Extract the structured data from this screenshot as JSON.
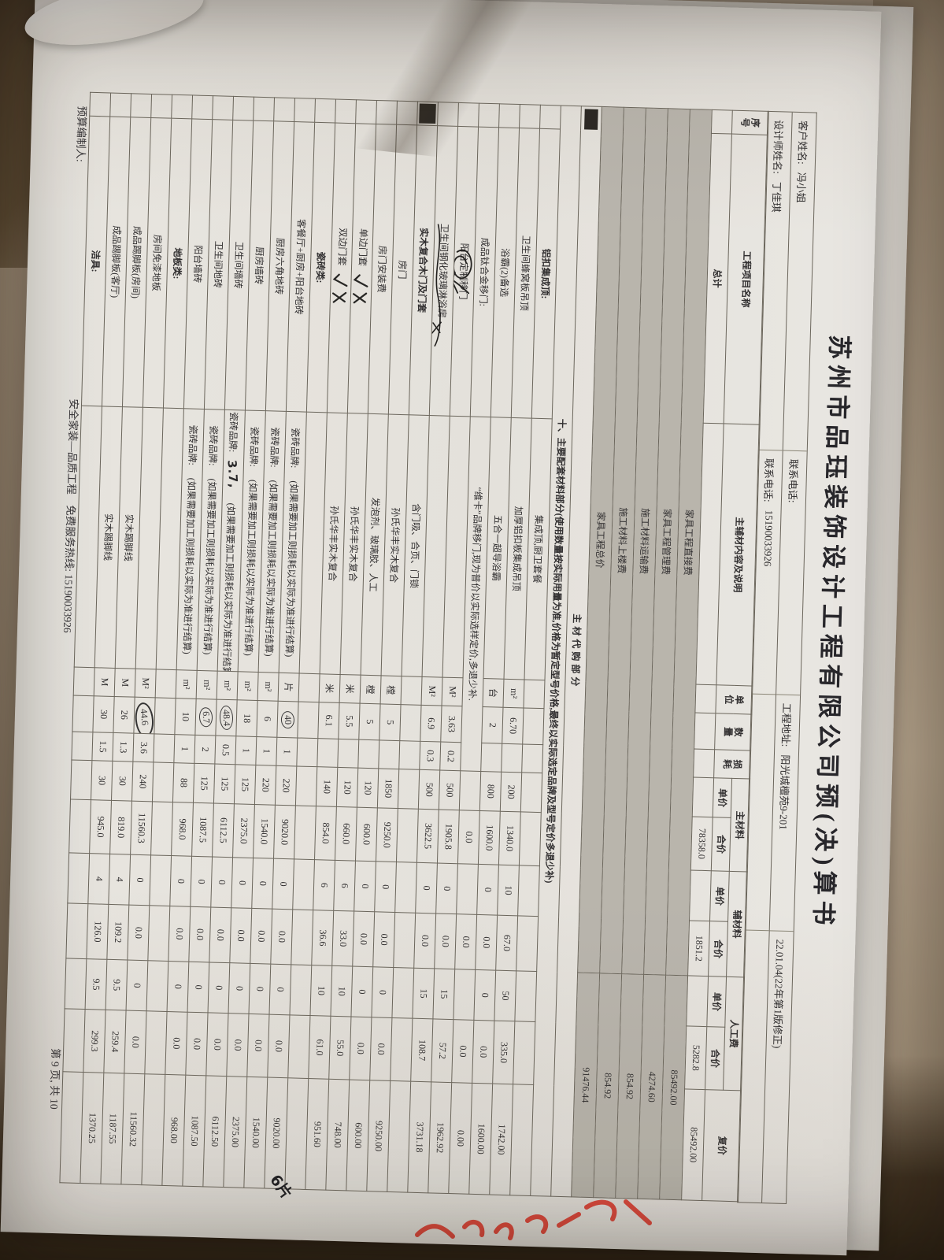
{
  "document": {
    "title": "苏州市品珏装饰设计工程有限公司预(决)算书",
    "info": {
      "customer_label": "客户姓名:",
      "customer": "冯小姐",
      "phone1_label": "联系电话:",
      "phone1": "",
      "address_label": "工程地址:",
      "address": "阳光城檀苑9-201",
      "version": "22.01.04(22年第1版修正)",
      "designer_label": "设计师姓名:",
      "designer": "丁佳琪",
      "phone2_label": "联系电话:",
      "phone2": "15190033926"
    },
    "table": {
      "header": {
        "seq": "序\n号",
        "name": "工程项目名称",
        "desc": "主辅材内容及说明",
        "unit": "单\n位",
        "qty": "数\n量",
        "loss": "损\n耗",
        "groups": [
          {
            "label": "主材料",
            "children": [
              "单价",
              "合价"
            ]
          },
          {
            "label": "辅材料",
            "children": [
              "单价",
              "合价"
            ]
          },
          {
            "label": "人工费",
            "children": [
              "单价",
              "合价"
            ]
          }
        ],
        "total": "复价"
      },
      "rows": [
        {
          "type": "item",
          "name": "总计",
          "name_center": true,
          "bold": true,
          "main_total": "78358.0",
          "aux_total": "1851.2",
          "labor_total": "5282.8",
          "total": "85492.00"
        },
        {
          "type": "summary",
          "shaded": true,
          "label": "家具工程直接费",
          "value": "85492.00"
        },
        {
          "type": "summary",
          "shaded": true,
          "label": "家具工程管理费",
          "value": "4274.60"
        },
        {
          "type": "summary",
          "shaded": true,
          "label": "施工材料运输费",
          "value": "854.92"
        },
        {
          "type": "summary",
          "shaded": true,
          "label": "施工材料上楼费",
          "value": "854.92"
        },
        {
          "type": "summary",
          "shaded": true,
          "label": "家具工程总价",
          "value": "91476.44"
        },
        {
          "type": "sec",
          "align": "center",
          "seq_mark": true,
          "text": "主材代购部分"
        },
        {
          "type": "note",
          "text": "十、主要配套材料部分(使用数量按实际用量为准,价格为暂定型号价格,最终以实际选定品牌及型号定价多退少补)"
        },
        {
          "type": "item",
          "bold": true,
          "name": "铝扣集成顶:",
          "desc": "集成顶,厨卫套餐"
        },
        {
          "type": "item",
          "name": "卫生间蜂窝板吊顶",
          "desc": "加厚铝扣板集成吊顶",
          "unit": "m²",
          "qty": "6.70",
          "price": "200",
          "main_total": "1340.0",
          "aux_price": "10",
          "aux_total": "67.0",
          "labor_price": "50",
          "labor_total": "335.0",
          "total": "1742.00"
        },
        {
          "type": "item",
          "name": "浴霸(2)备选",
          "desc": "五合一超导浴霸",
          "unit": "台",
          "qty": "2",
          "price": "800",
          "main_total": "1600.0",
          "aux_price": "0",
          "aux_total": "0.0",
          "labor_price": "0",
          "labor_total": "0.0",
          "total": "1600.00"
        },
        {
          "type": "item",
          "name": "成品钛合金移门:",
          "desc": "“维卡”品牌移门,现为普价以实际选样定价,多退少补.",
          "desc_span": 4,
          "main_total": "0.0",
          "aux_total": "0.0",
          "labor_total": "0.0",
          "total": "0.00"
        },
        {
          "type": "item",
          "name": "阳台定制移门",
          "mark": "scribble",
          "unit": "M²",
          "qty": "3.63",
          "loss": "0.2",
          "price": "500",
          "main_total": "1905.8",
          "aux_price": "0",
          "aux_total": "0.0",
          "labor_price": "15",
          "labor_total": "57.2",
          "total": "1962.92"
        },
        {
          "type": "item",
          "name": "卫生间钢化玻璃淋浴房",
          "mark": "underline",
          "unit": "M²",
          "qty": "6.9",
          "loss": "0.3",
          "price": "500",
          "main_total": "3622.5",
          "aux_price": "0",
          "aux_total": "0.0",
          "labor_price": "15",
          "labor_total": "108.7",
          "total": "3731.18"
        },
        {
          "type": "item",
          "bold": true,
          "seq_mark": true,
          "name": "实木复合木门及门套",
          "desc": "含门吸、合页、门锁"
        },
        {
          "type": "item",
          "name": "房门",
          "desc": "孙氏华丰实木复合",
          "unit": "樘",
          "qty": "5",
          "price": "1850",
          "main_total": "9250.0",
          "aux_price": "0",
          "aux_total": "0.0",
          "labor_price": "0",
          "labor_total": "0.0",
          "total": "9250.00"
        },
        {
          "type": "item",
          "name": "房门安装费",
          "desc": "发泡剂、玻璃胶、人工",
          "unit": "樘",
          "qty": "5",
          "price": "120",
          "main_total": "600.0",
          "aux_price": "0",
          "aux_total": "0.0",
          "labor_price": "0",
          "labor_total": "0.0",
          "total": "600.00"
        },
        {
          "type": "item",
          "name": "单边门套",
          "mark": "checks",
          "desc": "孙氏华丰实木复合",
          "unit": "米",
          "qty": "5.5",
          "price": "120",
          "main_total": "660.0",
          "aux_price": "6",
          "aux_total": "33.0",
          "labor_price": "10",
          "labor_total": "55.0",
          "total": "748.00"
        },
        {
          "type": "item",
          "name": "双边门套",
          "mark": "checks",
          "desc": "孙氏华丰实木复合",
          "unit": "米",
          "qty": "6.1",
          "price": "140",
          "main_total": "854.0",
          "aux_price": "6",
          "aux_total": "36.6",
          "labor_price": "10",
          "labor_total": "61.0",
          "total": "951.60"
        },
        {
          "type": "item",
          "bold": true,
          "name": "瓷砖类:"
        },
        {
          "type": "item",
          "name": "客餐厅+厨房+阳台地砖",
          "desc": "瓷砖品牌:",
          "desc_note": "(如果需要加工则损耗以实际为准进行结算)",
          "unit": "片",
          "qty": "40",
          "qty_circled": true,
          "loss": "1",
          "price": "220",
          "main_total": "9020.0",
          "aux_price": "0",
          "aux_total": "0.0",
          "labor_price": "0",
          "labor_total": "0.0",
          "total": "9020.00"
        },
        {
          "type": "item",
          "name": "厨房六角地砖",
          "desc": "瓷砖品牌:",
          "desc_note": "(如果需要加工则损耗以实际为准进行结算)",
          "unit": "m²",
          "qty": "6",
          "loss": "1",
          "price": "220",
          "main_total": "1540.0",
          "aux_price": "0",
          "aux_total": "0.0",
          "labor_price": "0",
          "labor_total": "0.0",
          "total": "1540.00"
        },
        {
          "type": "item",
          "name": "厨房墙砖",
          "desc": "瓷砖品牌:",
          "desc_note": "(如果需要加工则损耗以实际为准进行结算)",
          "unit": "m²",
          "qty": "18",
          "loss": "1",
          "price": "125",
          "main_total": "2375.0",
          "aux_price": "0",
          "aux_total": "0.0",
          "labor_price": "0",
          "labor_total": "0.0",
          "total": "2375.00"
        },
        {
          "type": "item",
          "name": "卫生间墙砖",
          "desc": "瓷砖品牌:",
          "desc_hw": "3.7,",
          "desc_note": "(如果需要加工则损耗以实际为准进行结算)",
          "unit": "m²",
          "qty": "48.4",
          "qty_circled": true,
          "loss": "0.5",
          "price": "125",
          "main_total": "6112.5",
          "aux_price": "0",
          "aux_total": "0.0",
          "labor_price": "0",
          "labor_total": "0.0",
          "total": "6112.50"
        },
        {
          "type": "item",
          "name": "卫生间地砖",
          "desc": "瓷砖品牌:",
          "desc_note": "(如果需要加工则损耗以实际为准进行结算)",
          "unit": "m²",
          "qty": "6.7",
          "qty_circled": true,
          "loss": "2",
          "price": "125",
          "main_total": "1087.5",
          "aux_price": "0",
          "aux_total": "0.0",
          "labor_price": "0",
          "labor_total": "0.0",
          "total": "1087.50"
        },
        {
          "type": "item",
          "name": "阳台墙砖",
          "desc": "瓷砖品牌:",
          "desc_note": "(如果需要加工则损耗以实际为准进行结算)",
          "unit": "m²",
          "qty": "10",
          "loss": "1",
          "price": "88",
          "main_total": "968.0",
          "aux_price": "0",
          "aux_total": "0.0",
          "labor_price": "0",
          "labor_total": "0.0",
          "total": "968.00"
        },
        {
          "type": "item",
          "bold": true,
          "name": "地板类:"
        },
        {
          "type": "item",
          "name": "房间免漆地板",
          "unit": "M²",
          "qty": "44.6",
          "qty_circle_big": true,
          "loss": "3.6",
          "price": "240",
          "main_total": "11560.3",
          "aux_price": "0",
          "aux_total": "0.0",
          "labor_price": "0",
          "labor_total": "0.0",
          "total": "11560.32"
        },
        {
          "type": "item",
          "name": "成品踢脚板(房间)",
          "desc": "实木踢脚线",
          "unit": "M",
          "qty": "26",
          "loss": "1.3",
          "price": "30",
          "main_total": "819.0",
          "aux_price": "4",
          "aux_total": "109.2",
          "labor_price": "9.5",
          "labor_total": "259.4",
          "total": "1187.55"
        },
        {
          "type": "item",
          "name": "成品踢脚板(客厅)",
          "desc": "实木踢脚线",
          "unit": "M",
          "qty": "30",
          "loss": "1.5",
          "price": "30",
          "main_total": "945.0",
          "aux_price": "4",
          "aux_total": "126.0",
          "labor_price": "9.5",
          "labor_total": "299.3",
          "total": "1370.25"
        },
        {
          "type": "item",
          "bold": true,
          "name": "洁具:"
        }
      ]
    },
    "footer": {
      "maker_label": "预算编制人:",
      "slogan": "安全家装—品质工程",
      "hotline_label": "免费服务热线:",
      "hotline": "15190033926",
      "page_indicator": "第 9 页, 共 10"
    },
    "annotations": {
      "margin_note": "6片"
    }
  }
}
